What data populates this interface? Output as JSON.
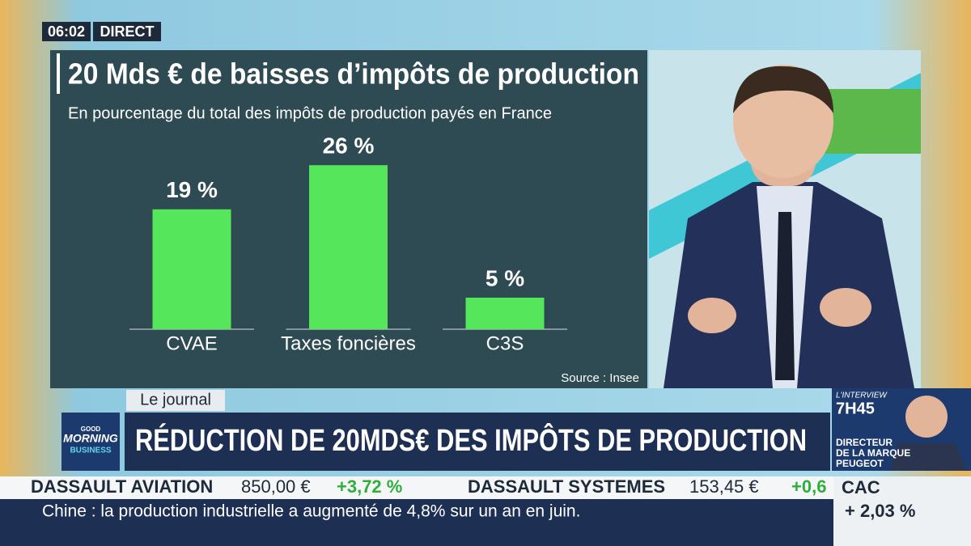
{
  "chart_data": {
    "type": "bar",
    "title": "20 Mds € de baisses d’impôts de production",
    "subtitle": "En pourcentage du total des impôts de production payés en France",
    "categories": [
      "CVAE",
      "Taxes foncières",
      "C3S"
    ],
    "values": [
      19,
      26,
      5
    ],
    "value_labels": [
      "19 %",
      "26 %",
      "5 %"
    ],
    "color": "#55e65c",
    "source": "Source : Insee"
  },
  "clock": "06:02",
  "live": "DIRECT",
  "section": "Le journal",
  "headline": "RÉDUCTION DE 20MDS€ DES IMPÔTS DE PRODUCTION",
  "logo": [
    "GOOD",
    "MORNING",
    "BUSINESS"
  ],
  "ticker": [
    {
      "name": "DASSAULT AVIATION",
      "price": "850,00 €",
      "change": "+3,72 %"
    },
    {
      "name": "DASSAULT SYSTEMES",
      "price": "153,45 €",
      "change": "+0,6"
    }
  ],
  "index": {
    "name": "CAC",
    "change": "+ 2,03 %"
  },
  "news": "Chine : la production industrielle a augmenté de 4,8% sur un an en juin.",
  "promo": {
    "label": "L'INTERVIEW",
    "time": "7H45",
    "lines": [
      "DIRECTEUR",
      "DE LA MARQUE",
      "PEUGEOT"
    ]
  }
}
